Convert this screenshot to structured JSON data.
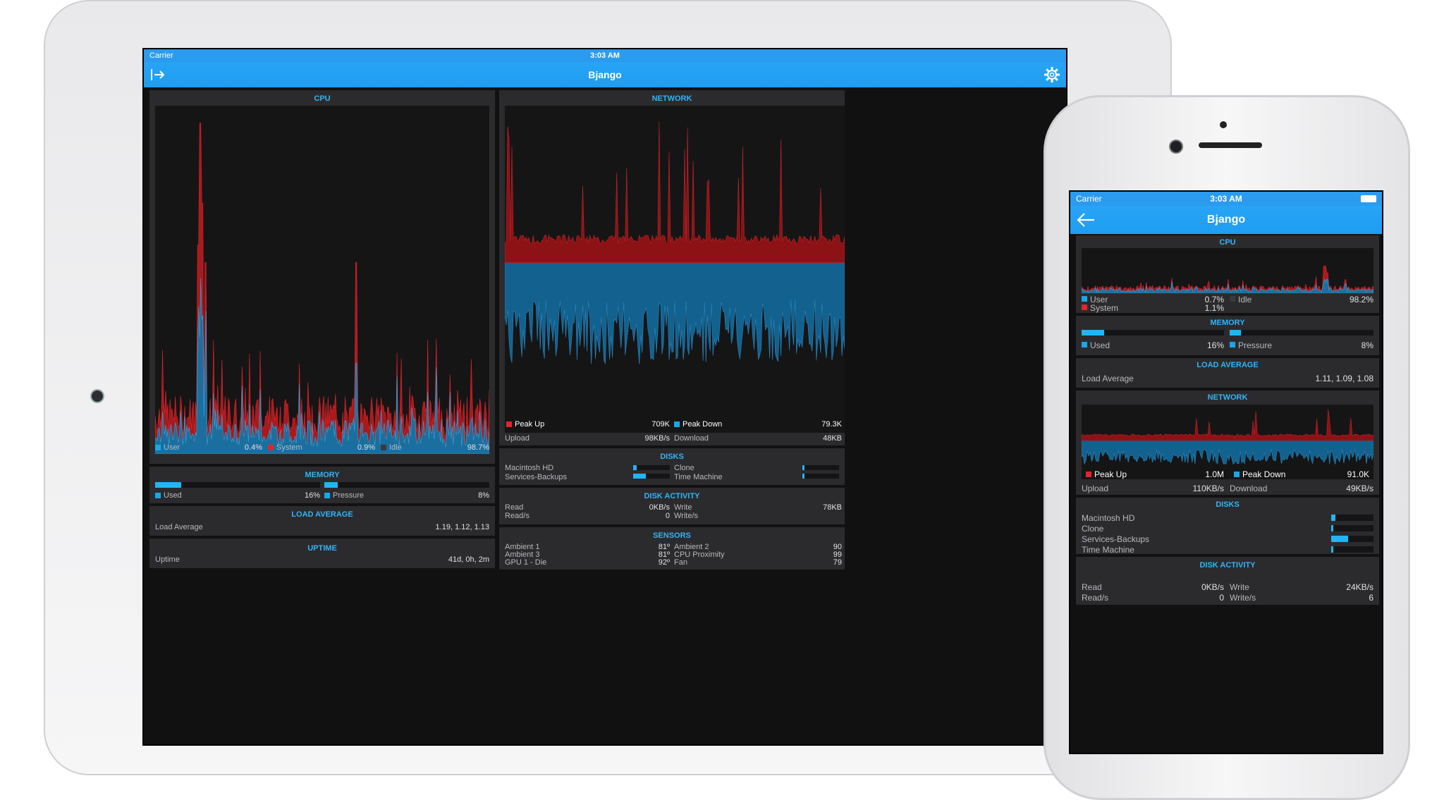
{
  "ipad": {
    "status": {
      "carrier": "Carrier",
      "time": "3:03 AM"
    },
    "nav": {
      "title": "Bjango",
      "exit_icon": "exit-icon",
      "settings_icon": "gear-icon"
    },
    "cpu": {
      "title": "CPU",
      "user_label": "User",
      "user_value": "0.4%",
      "system_label": "System",
      "system_value": "0.9%",
      "idle_label": "Idle",
      "idle_value": "98.7%"
    },
    "memory": {
      "title": "MEMORY",
      "used_label": "Used",
      "used_value": "16%",
      "used_level": 0.16,
      "pressure_label": "Pressure",
      "pressure_value": "8%",
      "pressure_level": 0.08
    },
    "load": {
      "title": "LOAD AVERAGE",
      "label": "Load Average",
      "value": "1.19, 1.12, 1.13"
    },
    "uptime": {
      "title": "UPTIME",
      "label": "Uptime",
      "value": "41d, 0h, 2m"
    },
    "network": {
      "title": "NETWORK",
      "peak_up_label": "Peak Up",
      "peak_up_value": "709K",
      "peak_down_label": "Peak Down",
      "peak_down_value": "79.3K",
      "upload_label": "Upload",
      "upload_value": "98KB/s",
      "download_label": "Download",
      "download_value": "48KB"
    },
    "disks": {
      "title": "DISKS",
      "items": [
        {
          "name": "Macintosh HD",
          "level": 0.1
        },
        {
          "name": "Services-Backups",
          "level": 0.35
        },
        {
          "name": "Clone",
          "level": 0.05
        },
        {
          "name": "Time Machine",
          "level": 0.05
        }
      ]
    },
    "disk_activity": {
      "title": "DISK ACTIVITY",
      "read_label": "Read",
      "read_value": "0KB/s",
      "reads_label": "Read/s",
      "reads_value": "0",
      "write_label": "Write",
      "write_value": "78KB",
      "writes_label": "Write/s",
      "writes_value": ""
    },
    "sensors": {
      "title": "SENSORS",
      "left": [
        {
          "label": "Ambient 1",
          "value": "81º"
        },
        {
          "label": "Ambient 3",
          "value": "81º"
        },
        {
          "label": "GPU 1 - Die",
          "value": "92º"
        }
      ],
      "right": [
        {
          "label": "Ambient 2",
          "value": "90"
        },
        {
          "label": "CPU Proximity",
          "value": "99"
        },
        {
          "label": "Fan",
          "value": "79"
        }
      ]
    }
  },
  "iphone": {
    "status": {
      "carrier": "Carrier",
      "time": "3:03 AM"
    },
    "nav": {
      "title": "Bjango",
      "back_icon": "back-arrow-icon"
    },
    "cpu": {
      "title": "CPU",
      "user_label": "User",
      "user_value": "0.7%",
      "system_label": "System",
      "system_value": "1.1%",
      "idle_label": "Idle",
      "idle_value": "98.2%"
    },
    "memory": {
      "title": "MEMORY",
      "used_label": "Used",
      "used_value": "16%",
      "used_level": 0.16,
      "pressure_label": "Pressure",
      "pressure_value": "8%",
      "pressure_level": 0.08
    },
    "load": {
      "title": "LOAD AVERAGE",
      "label": "Load Average",
      "value": "1.11, 1.09, 1.08"
    },
    "network": {
      "title": "NETWORK",
      "peak_up_label": "Peak Up",
      "peak_up_value": "1.0M",
      "peak_down_label": "Peak Down",
      "peak_down_value": "91.0K",
      "upload_label": "Upload",
      "upload_value": "110KB/s",
      "download_label": "Download",
      "download_value": "49KB/s"
    },
    "disks": {
      "title": "DISKS",
      "items": [
        {
          "name": "Macintosh HD",
          "level": 0.1
        },
        {
          "name": "Clone",
          "level": 0.05
        },
        {
          "name": "Services-Backups",
          "level": 0.4
        },
        {
          "name": "Time Machine",
          "level": 0.05
        }
      ]
    },
    "disk_activity": {
      "title": "DISK ACTIVITY",
      "read_label": "Read",
      "read_value": "0KB/s",
      "reads_label": "Read/s",
      "reads_value": "0",
      "write_label": "Write",
      "write_value": "24KB/s",
      "writes_label": "Write/s",
      "writes_value": "6"
    }
  },
  "colors": {
    "accent": "#34b4f5",
    "nav": "#22a0f3",
    "user": "#1aa7e8",
    "system": "#e0262c",
    "idle": "#3a3a3c",
    "panel": "#2b2b2e"
  }
}
